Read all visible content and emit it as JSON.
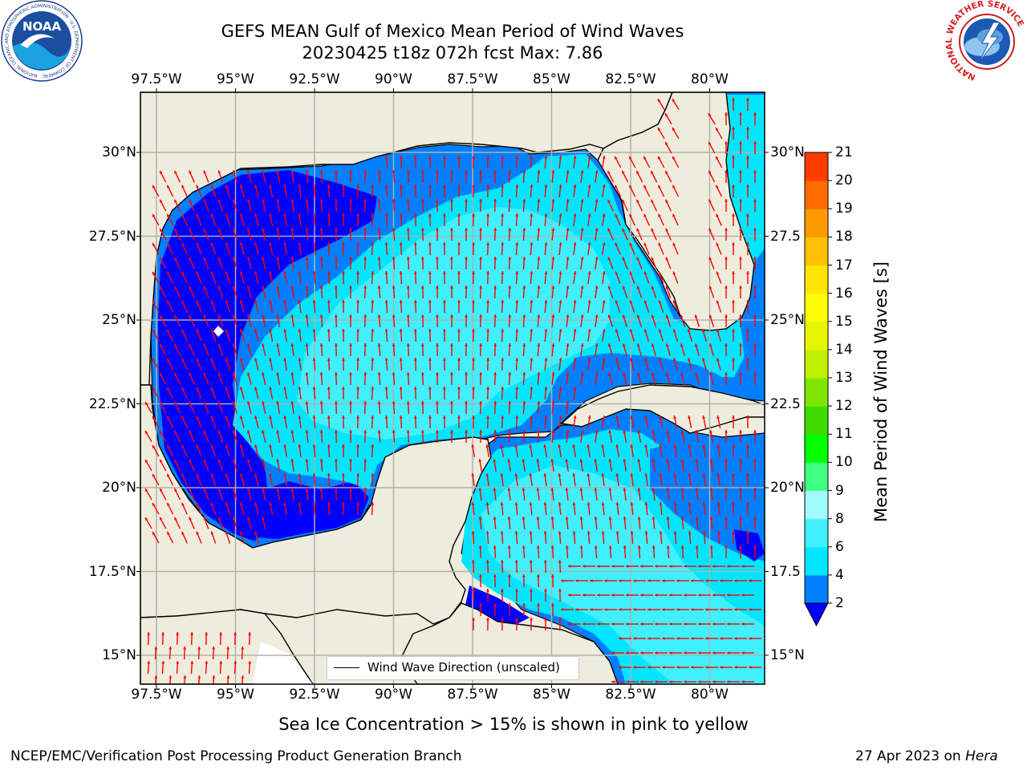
{
  "title": {
    "line1": "GEFS MEAN Gulf of Mexico Mean Period of Wind Waves",
    "line2": "20230425 t18z 072h fcst   Max: 7.86"
  },
  "map": {
    "lon_ticks": [
      "97.5°W",
      "95°W",
      "92.5°W",
      "90°W",
      "87.5°W",
      "85°W",
      "82.5°W",
      "80°W"
    ],
    "lat_ticks_left": [
      "30°N",
      "27.5°N",
      "25°N",
      "22.5°N",
      "20°N",
      "17.5°N",
      "15°N"
    ],
    "lat_ticks_right": [
      "30°N",
      "27.5",
      "25°N",
      "22.5",
      "20°N",
      "17.5",
      "15°N"
    ],
    "legend_label": "Wind Wave Direction (unscaled)",
    "colors": {
      "land": "#eeecdd",
      "level_2_4": "#0080ff",
      "level_4_6": "#00e6ff",
      "level_6_8": "#40f0ff",
      "level_below_2": "#0000ff",
      "arrow": "#ff0000",
      "grid": "#b0b0b0"
    }
  },
  "colorbar": {
    "label": "Mean Period of Wind Waves [s]",
    "ticks": [
      "2",
      "4",
      "6",
      "8",
      "9",
      "10",
      "11",
      "12",
      "13",
      "14",
      "15",
      "16",
      "17",
      "18",
      "19",
      "20",
      "21"
    ],
    "colors": [
      "#0080ff",
      "#00e6ff",
      "#40f0ff",
      "#a0fcff",
      "#40ff80",
      "#00ff00",
      "#40dc00",
      "#80e600",
      "#c0f000",
      "#e6f500",
      "#ffff00",
      "#ffe600",
      "#ffc000",
      "#ff9900",
      "#ff6a00",
      "#ff3c00",
      "#ff0000"
    ],
    "extend_color": "#0000ff"
  },
  "caption": "Sea Ice Concentration > 15% is shown in pink to yellow",
  "footer": {
    "left": "NCEP/EMC/Verification Post Processing Product Generation Branch",
    "right_date": "27 Apr 2023 on ",
    "right_host": "Hera"
  },
  "logos": {
    "noaa_text": "NOAA",
    "noaa_ring": "NATIONAL OCEANIC AND ATMOSPHERIC ADMINISTRATION · U.S. DEPARTMENT OF COMMERCE",
    "nws_ring": "NATIONAL WEATHER SERVICE"
  }
}
